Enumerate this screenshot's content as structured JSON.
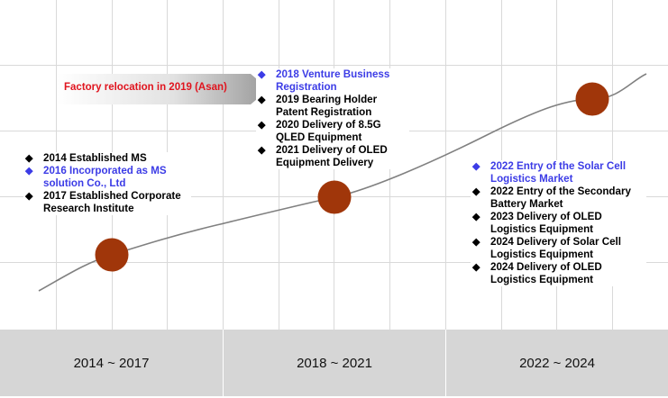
{
  "colors": {
    "milestone": "#a0360a",
    "line": "#808080",
    "banner_bg": "#a8a8a8",
    "banner_text": "#e0141e",
    "highlight": "#3c3ce6",
    "normal": "#000000",
    "period_bar": "#d6d6d6",
    "grid": "#d9d9d9"
  },
  "banner": {
    "text": "Factory relocation in 2019 (Asan)"
  },
  "periods": [
    {
      "label": "2014 ~ 2017"
    },
    {
      "label": "2018 ~ 2021"
    },
    {
      "label": "2022 ~ 2024"
    }
  ],
  "groups": [
    {
      "items": [
        {
          "text": "2014 Established MS",
          "highlight": false
        },
        {
          "text": "2016 Incorporated as MS solution Co., Ltd",
          "highlight": true
        },
        {
          "text": "2017 Established Corporate Research Institute",
          "highlight": false
        }
      ]
    },
    {
      "items": [
        {
          "text": "2018 Venture Business Registration",
          "highlight": true
        },
        {
          "text": "2019 Bearing Holder Patent Registration",
          "highlight": false
        },
        {
          "text": "2020 Delivery of 8.5G QLED Equipment",
          "highlight": false
        },
        {
          "text": "2021 Delivery of OLED Equipment Delivery",
          "highlight": false
        }
      ]
    },
    {
      "items": [
        {
          "text": "2022 Entry of the Solar Cell Logistics Market",
          "highlight": true
        },
        {
          "text": "2022 Entry of the Secondary Battery Market",
          "highlight": false
        },
        {
          "text": "2023 Delivery of OLED Logistics Equipment",
          "highlight": false
        },
        {
          "text": "2024 Delivery of Solar Cell Logistics Equipment",
          "highlight": false
        },
        {
          "text": "2024 Delivery of OLED Logistics Equipment",
          "highlight": false
        }
      ]
    }
  ]
}
